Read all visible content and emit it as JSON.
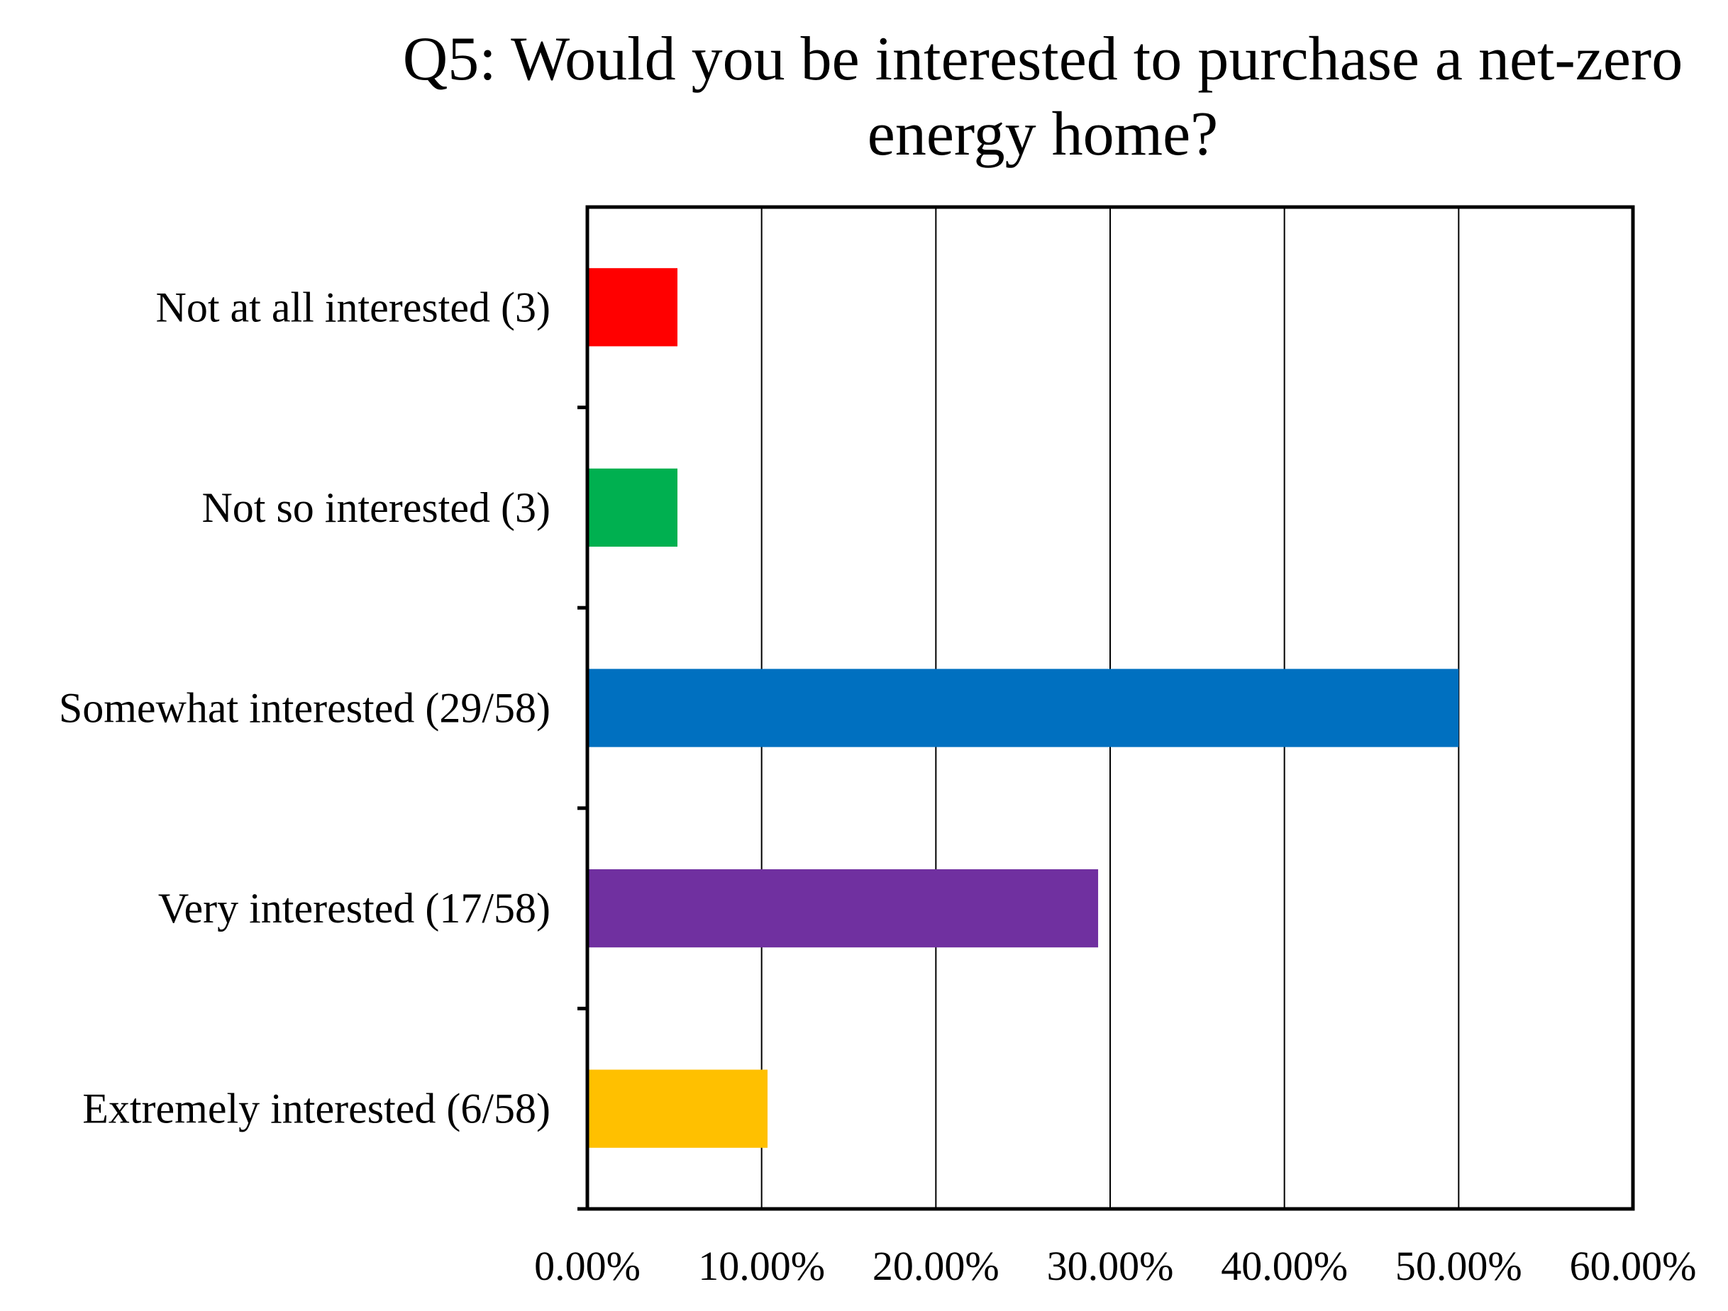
{
  "chart_data": {
    "type": "bar",
    "orientation": "horizontal",
    "title": "Q5: Would you be interested to purchase a net-zero energy home?",
    "title_lines": [
      "Q5: Would you be interested to purchase a net-zero",
      "energy home?"
    ],
    "xlabel": "",
    "ylabel": "",
    "categories": [
      "Not at all interested (3)",
      "Not so interested (3)",
      "Somewhat interested (29/58)",
      "Very interested (17/58)",
      "Extremely interested (6/58)"
    ],
    "values": [
      5.17,
      5.17,
      50.0,
      29.31,
      10.34
    ],
    "value_unit": "%",
    "colors": [
      "#ff0000",
      "#00b050",
      "#0070c0",
      "#7030a0",
      "#ffc000"
    ],
    "xlim": [
      0,
      60
    ],
    "xticks": [
      0,
      10,
      20,
      30,
      40,
      50,
      60
    ],
    "xtick_labels": [
      "0.00%",
      "10.00%",
      "20.00%",
      "30.00%",
      "40.00%",
      "50.00%",
      "60.00%"
    ],
    "grid": "vertical",
    "legend": "none"
  }
}
